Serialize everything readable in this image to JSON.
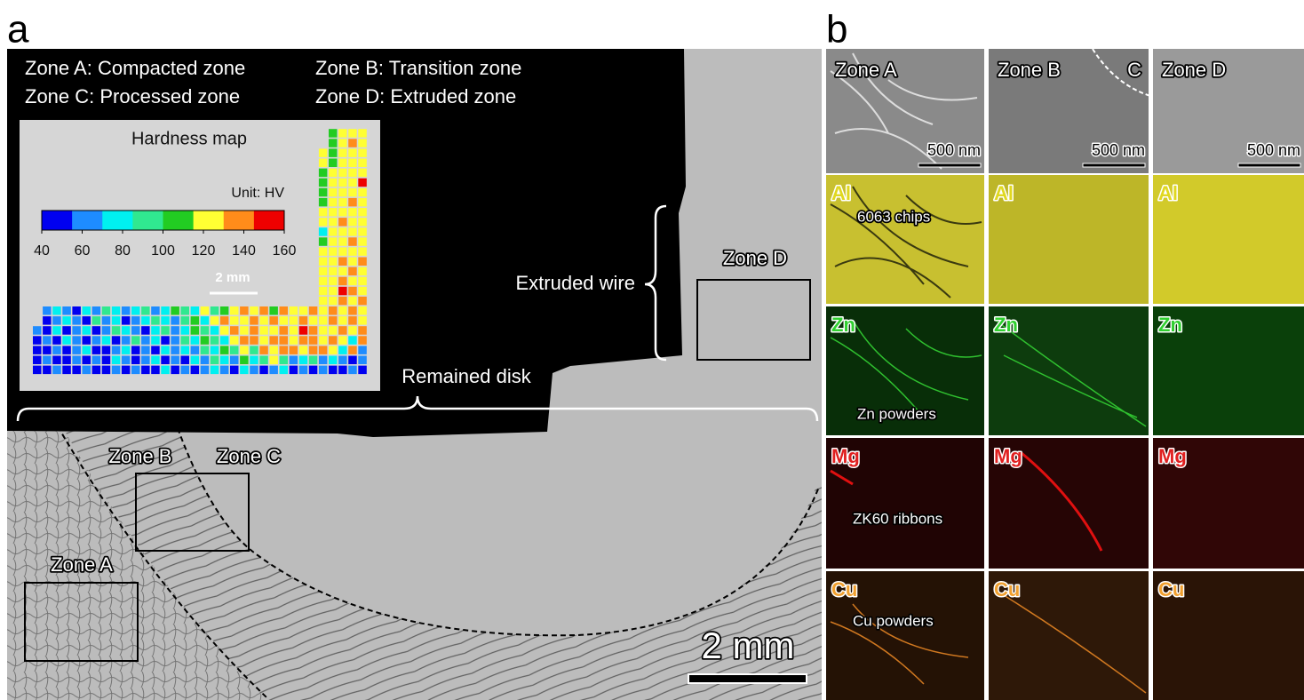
{
  "panel_a": {
    "label": "a",
    "legend": [
      "Zone A: Compacted zone",
      "Zone B: Transition zone",
      "Zone C: Processed zone",
      "Zone D: Extruded zone"
    ],
    "zone_labels": [
      "Zone A",
      "Zone B",
      "Zone C",
      "Zone D"
    ],
    "annotations": [
      "Extruded wire",
      "Remained disk"
    ],
    "scale_bar": "2 mm",
    "hardness_map": {
      "title": "Hardness map",
      "unit": "Unit: HV",
      "scale_bar": "2 mm",
      "colorbar_ticks": [
        40,
        60,
        80,
        100,
        120,
        140,
        160
      ],
      "colors": [
        "#0000f0",
        "#1e8cff",
        "#00f0f0",
        "#30e890",
        "#22cc22",
        "#ffff33",
        "#ff8c1a",
        "#ee0000"
      ],
      "vertical_part": [
        [
          null,
          108,
          125,
          125,
          125
        ],
        [
          null,
          108,
          125,
          138,
          125
        ],
        [
          122,
          108,
          125,
          125,
          125
        ],
        [
          122,
          105,
          125,
          125,
          125
        ],
        [
          108,
          125,
          125,
          125,
          125
        ],
        [
          108,
          125,
          125,
          125,
          152
        ],
        [
          108,
          125,
          125,
          125,
          125
        ],
        [
          108,
          125,
          125,
          138,
          125
        ],
        [
          125,
          125,
          125,
          125,
          125
        ],
        [
          125,
          125,
          138,
          125,
          125
        ],
        [
          78,
          125,
          125,
          125,
          125
        ],
        [
          108,
          125,
          125,
          138,
          125
        ],
        [
          125,
          125,
          125,
          125,
          125
        ],
        [
          125,
          125,
          138,
          125,
          138
        ],
        [
          125,
          125,
          125,
          138,
          125
        ],
        [
          125,
          125,
          138,
          125,
          125
        ],
        [
          125,
          125,
          152,
          138,
          125
        ],
        [
          125,
          125,
          138,
          125,
          138
        ]
      ],
      "horizontal_part": [
        [
          null,
          62,
          78,
          62,
          48,
          78,
          62,
          92,
          78,
          62,
          78,
          92,
          62,
          78,
          108,
          92,
          78,
          122,
          92,
          108,
          122,
          138,
          122,
          138,
          108,
          138,
          122,
          125,
          138,
          122,
          138,
          125,
          138,
          125
        ],
        [
          null,
          48,
          62,
          78,
          62,
          48,
          92,
          62,
          78,
          48,
          62,
          78,
          92,
          78,
          62,
          92,
          108,
          78,
          122,
          138,
          122,
          125,
          138,
          125,
          138,
          122,
          125,
          138,
          125,
          122,
          138,
          125,
          138,
          125
        ],
        [
          62,
          48,
          78,
          48,
          62,
          78,
          48,
          62,
          92,
          78,
          62,
          48,
          78,
          92,
          62,
          78,
          108,
          92,
          78,
          122,
          138,
          122,
          138,
          125,
          122,
          138,
          125,
          152,
          138,
          125,
          122,
          138,
          125,
          138
        ],
        [
          48,
          62,
          48,
          78,
          62,
          48,
          62,
          78,
          48,
          62,
          92,
          62,
          78,
          48,
          62,
          92,
          78,
          108,
          92,
          78,
          122,
          138,
          138,
          122,
          138,
          138,
          125,
          138,
          138,
          122,
          138,
          125,
          78,
          138
        ],
        [
          48,
          48,
          62,
          48,
          62,
          78,
          48,
          48,
          62,
          78,
          48,
          62,
          48,
          78,
          62,
          78,
          62,
          92,
          78,
          108,
          92,
          122,
          92,
          138,
          122,
          138,
          138,
          125,
          138,
          138,
          125,
          78,
          138,
          62
        ],
        [
          48,
          62,
          48,
          48,
          62,
          48,
          62,
          48,
          78,
          62,
          48,
          62,
          78,
          48,
          62,
          48,
          78,
          62,
          92,
          78,
          62,
          108,
          78,
          92,
          122,
          92,
          62,
          78,
          92,
          62,
          78,
          62,
          48,
          62
        ],
        [
          48,
          48,
          62,
          48,
          48,
          62,
          48,
          48,
          62,
          48,
          62,
          48,
          48,
          78,
          48,
          62,
          48,
          62,
          78,
          62,
          48,
          78,
          62,
          48,
          62,
          78,
          48,
          62,
          48,
          62,
          48,
          48,
          62,
          48
        ]
      ]
    }
  },
  "panel_b": {
    "label": "b",
    "columns": [
      "Zone A",
      "Zone B",
      "Zone D"
    ],
    "boundary_label": "C",
    "scale_bar": "500 nm",
    "rows": [
      {
        "element": "Al",
        "color": "#e0d820",
        "annotation": "6063 chips"
      },
      {
        "element": "Zn",
        "color": "#30d030",
        "annotation": "Zn powders"
      },
      {
        "element": "Mg",
        "color": "#e02020",
        "annotation": "ZK60 ribbons"
      },
      {
        "element": "Cu",
        "color": "#f0a030",
        "annotation": "Cu powders"
      }
    ]
  }
}
